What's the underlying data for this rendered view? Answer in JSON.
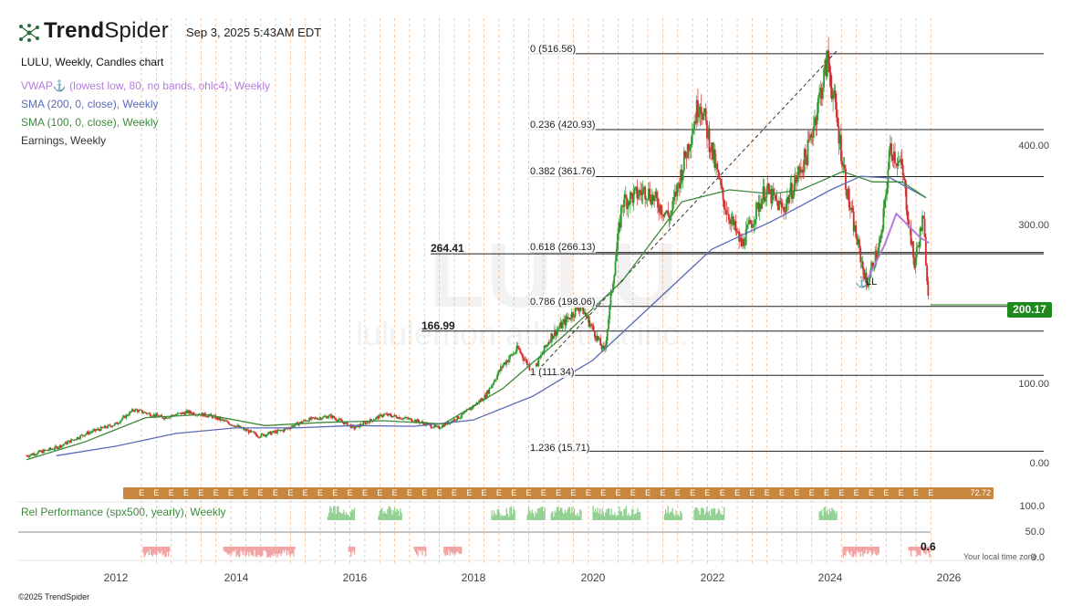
{
  "header": {
    "brand_bold": "Trend",
    "brand_light": "Spider",
    "timestamp": "Sep 3, 2025 5:43AM EDT",
    "chart_title": "LULU, Weekly, Candles chart",
    "indicators": [
      {
        "label": "VWAP⚓ (lowest low, 80, no bands, ohlc4), Weekly",
        "color": "#b57be0"
      },
      {
        "label": "SMA (200, 0, close), Weekly",
        "color": "#5a6bb5"
      },
      {
        "label": "SMA (100, 0, close), Weekly",
        "color": "#3d8a3d"
      },
      {
        "label": "Earnings, Weekly",
        "color": "#333333"
      }
    ]
  },
  "watermark": {
    "ticker": "LULU",
    "company": "lululemon athletica inc."
  },
  "last_price": "200.17",
  "levels": {
    "left_264": "264.41",
    "left_167": "166.99",
    "fib": [
      {
        "label": "0 (516.56)"
      },
      {
        "label": "0.236 (420.93)"
      },
      {
        "label": "0.382 (361.76)"
      },
      {
        "label": "0.618 (266.13)"
      },
      {
        "label": "0.786 (198.06)"
      },
      {
        "label": "1 (111.34)"
      },
      {
        "label": "1.236 (15.71)"
      }
    ]
  },
  "annotation_ll": "LL",
  "earnings_strip": {
    "letter": "E",
    "end_value": "72.72"
  },
  "rel_perf": {
    "label": "Rel Performance (spx500, yearly), Weekly",
    "last_value": "0.6",
    "ticks": [
      "100.0",
      "50.0",
      "0.0"
    ]
  },
  "timezone_note": "Your local time zone",
  "copyright": "©2025 TrendSpider",
  "colors": {
    "up": "#2d9a2d",
    "down": "#d12b2b",
    "vwap": "#b57be0",
    "sma200": "#5a6bb5",
    "sma100": "#3d8a3d",
    "rel_pos": "#8fcf8f",
    "rel_neg": "#f2a0a0",
    "earn_line": "#f5b98a"
  },
  "chart_data": {
    "type": "candlestick",
    "title": "LULU, Weekly, Candles chart",
    "ylim": [
      0,
      520
    ],
    "y_ticks": [
      "400.00",
      "300.00",
      "100.00",
      "0.00"
    ],
    "x_ticks": [
      "2012",
      "2014",
      "2016",
      "2018",
      "2020",
      "2022",
      "2024",
      "2026"
    ],
    "price_path": [
      [
        2010.5,
        10
      ],
      [
        2011.0,
        20
      ],
      [
        2011.5,
        38
      ],
      [
        2012.0,
        50
      ],
      [
        2012.3,
        68
      ],
      [
        2012.8,
        58
      ],
      [
        2013.2,
        65
      ],
      [
        2013.6,
        60
      ],
      [
        2014.0,
        48
      ],
      [
        2014.4,
        35
      ],
      [
        2014.8,
        42
      ],
      [
        2015.2,
        55
      ],
      [
        2015.6,
        60
      ],
      [
        2016.0,
        45
      ],
      [
        2016.5,
        62
      ],
      [
        2017.0,
        55
      ],
      [
        2017.4,
        45
      ],
      [
        2017.8,
        60
      ],
      [
        2018.2,
        85
      ],
      [
        2018.5,
        125
      ],
      [
        2018.75,
        145
      ],
      [
        2019.0,
        115
      ],
      [
        2019.3,
        160
      ],
      [
        2019.8,
        200
      ],
      [
        2020.2,
        140
      ],
      [
        2020.5,
        330
      ],
      [
        2020.9,
        345
      ],
      [
        2021.3,
        310
      ],
      [
        2021.8,
        460
      ],
      [
        2022.2,
        330
      ],
      [
        2022.5,
        275
      ],
      [
        2022.9,
        345
      ],
      [
        2023.2,
        320
      ],
      [
        2023.6,
        390
      ],
      [
        2023.95,
        510
      ],
      [
        2024.3,
        330
      ],
      [
        2024.6,
        225
      ],
      [
        2024.85,
        285
      ],
      [
        2025.0,
        400
      ],
      [
        2025.2,
        370
      ],
      [
        2025.4,
        250
      ],
      [
        2025.55,
        310
      ],
      [
        2025.65,
        198
      ]
    ],
    "sma200_path": [
      [
        2011.0,
        10
      ],
      [
        2012.0,
        22
      ],
      [
        2013.0,
        38
      ],
      [
        2014.0,
        45
      ],
      [
        2015.0,
        45
      ],
      [
        2016.0,
        48
      ],
      [
        2017.0,
        47
      ],
      [
        2018.0,
        55
      ],
      [
        2019.0,
        85
      ],
      [
        2020.0,
        130
      ],
      [
        2021.0,
        200
      ],
      [
        2022.0,
        270
      ],
      [
        2023.0,
        305
      ],
      [
        2024.0,
        345
      ],
      [
        2024.5,
        362
      ],
      [
        2025.0,
        360
      ],
      [
        2025.6,
        335
      ]
    ],
    "sma100_path": [
      [
        2010.5,
        5
      ],
      [
        2011.5,
        28
      ],
      [
        2012.5,
        58
      ],
      [
        2013.5,
        62
      ],
      [
        2014.5,
        48
      ],
      [
        2015.5,
        52
      ],
      [
        2016.5,
        54
      ],
      [
        2017.5,
        50
      ],
      [
        2018.5,
        95
      ],
      [
        2019.5,
        160
      ],
      [
        2020.5,
        230
      ],
      [
        2021.5,
        330
      ],
      [
        2022.3,
        345
      ],
      [
        2023.0,
        340
      ],
      [
        2023.5,
        345
      ],
      [
        2024.2,
        368
      ],
      [
        2024.7,
        355
      ],
      [
        2025.2,
        355
      ],
      [
        2025.6,
        335
      ]
    ],
    "vwap_path": [
      [
        2024.6,
        230
      ],
      [
        2024.9,
        275
      ],
      [
        2025.1,
        315
      ],
      [
        2025.3,
        300
      ],
      [
        2025.5,
        285
      ],
      [
        2025.65,
        278
      ]
    ],
    "trendline": [
      [
        2019.0,
        111
      ],
      [
        2024.1,
        520
      ]
    ],
    "fib_levels": [
      516.56,
      420.93,
      361.76,
      266.13,
      198.06,
      111.34,
      15.71
    ],
    "horizontal_levels": [
      264.41,
      166.99
    ],
    "last_price": 200.17
  }
}
